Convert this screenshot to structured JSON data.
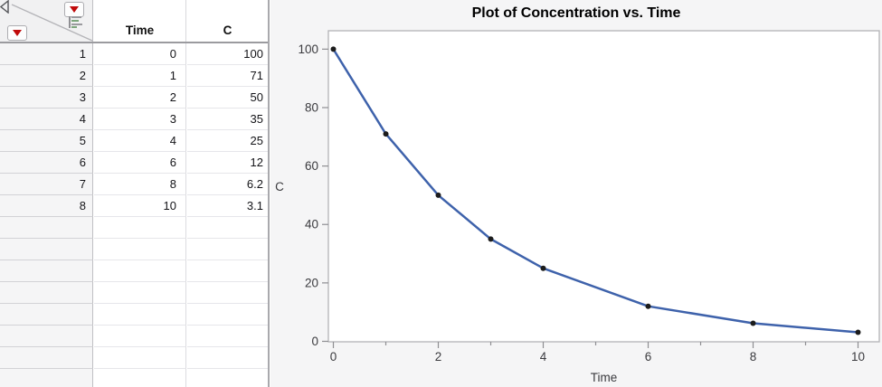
{
  "table": {
    "columns": [
      {
        "label": "Time"
      },
      {
        "label": "C"
      }
    ],
    "rows": [
      {
        "n": "1",
        "time": "0",
        "c": "100"
      },
      {
        "n": "2",
        "time": "1",
        "c": "71"
      },
      {
        "n": "3",
        "time": "2",
        "c": "50"
      },
      {
        "n": "4",
        "time": "3",
        "c": "35"
      },
      {
        "n": "5",
        "time": "4",
        "c": "25"
      },
      {
        "n": "6",
        "time": "6",
        "c": "12"
      },
      {
        "n": "7",
        "time": "8",
        "c": "6.2"
      },
      {
        "n": "8",
        "time": "10",
        "c": "3.1"
      }
    ],
    "empty_row_count": 8,
    "red_triangle_color": "#c00A0A"
  },
  "chart_data": {
    "type": "line",
    "title": "Plot of Concentration vs. Time",
    "xlabel": "Time",
    "ylabel": "C",
    "x": [
      0,
      1,
      2,
      3,
      4,
      6,
      8,
      10
    ],
    "y": [
      100,
      71,
      50,
      35,
      25,
      12,
      6.2,
      3.1
    ],
    "x_ticks": [
      0,
      2,
      4,
      6,
      8,
      10
    ],
    "x_minor_ticks": [
      1,
      3,
      5,
      7,
      9
    ],
    "y_ticks": [
      0,
      20,
      40,
      60,
      80,
      100
    ],
    "xlim": [
      -0.095,
      10.405
    ],
    "ylim": [
      -0.155,
      106.3
    ],
    "grid": false,
    "legend": "none",
    "line_color": "#3e62ab",
    "marker_color": "#1c1c1c",
    "frame_color": "#b2b2b6",
    "tick_color": "#8e8e92",
    "label_color": "#3a3a3e"
  }
}
